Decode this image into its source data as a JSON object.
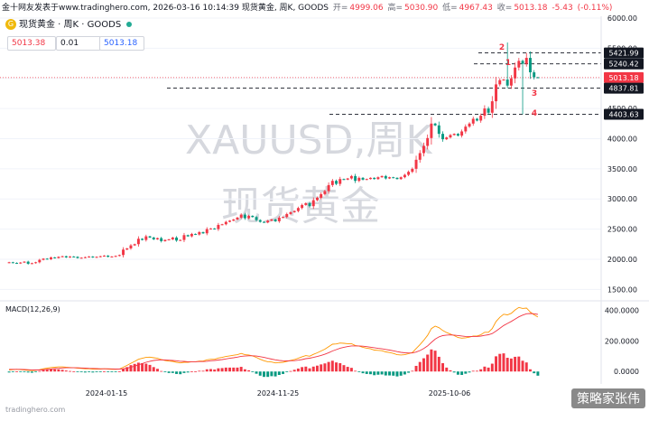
{
  "topbar": {
    "source": "金十网友发表于www.tradinghero.com, 2026-03-16 10:14:39 现货黄金, 周K, GOODS",
    "open_label": "开=",
    "open": "4999.06",
    "high_label": "高=",
    "high": "5030.90",
    "low_label": "低=",
    "low": "4967.43",
    "close_label": "收=",
    "close": "5013.18",
    "change": "-5.43",
    "change_pct": "(-0.11%)"
  },
  "symbol": {
    "icon_text": "G",
    "name": "现货黄金 · 周K · GOODS"
  },
  "boxes": {
    "left": "5013.38",
    "mid": "0.01",
    "right": "5013.18"
  },
  "macd": {
    "label": "MACD(12,26,9)"
  },
  "footer": {
    "logo": "tradinghero.com",
    "brand": "策略家张伟"
  },
  "chart_data": [
    {
      "type": "candlestick",
      "watermark_line1": "XAUUSD,周K",
      "watermark_line2": "现货黄金",
      "y_ticks": [
        1500,
        2000,
        2500,
        3000,
        3500,
        4000,
        4500,
        5000,
        5500,
        6000
      ],
      "ylim": [
        1400,
        6000
      ],
      "x_ticks": [
        "2024-01-15",
        "2024-11-25",
        "2025-10-06"
      ],
      "price_levels": [
        {
          "value": 5421.99,
          "label": "5421.99"
        },
        {
          "value": 5240.42,
          "label": "5240.42"
        },
        {
          "value": 5013.18,
          "label": "5013.18",
          "current": true
        },
        {
          "value": 4837.81,
          "label": "4837.81"
        },
        {
          "value": 4403.63,
          "label": "4403.63"
        }
      ],
      "wave_labels": [
        "1",
        "2",
        "3",
        "4"
      ],
      "series": [
        {
          "name": "close",
          "values": [
            1950,
            1940,
            1930,
            1945,
            1960,
            1925,
            1935,
            1950,
            1990,
            2010,
            2000,
            2030,
            2020,
            2040,
            2050,
            2030,
            2045,
            2040,
            2020,
            2025,
            2035,
            2045,
            2030,
            2040,
            2050,
            2060,
            2040,
            2045,
            2055,
            2070,
            2160,
            2180,
            2230,
            2250,
            2340,
            2320,
            2380,
            2360,
            2330,
            2350,
            2300,
            2320,
            2330,
            2360,
            2310,
            2320,
            2400,
            2380,
            2420,
            2410,
            2450,
            2430,
            2500,
            2510,
            2500,
            2570,
            2580,
            2620,
            2640,
            2660,
            2690,
            2740,
            2680,
            2720,
            2700,
            2650,
            2620,
            2610,
            2640,
            2660,
            2630,
            2690,
            2700,
            2750,
            2780,
            2800,
            2850,
            2900,
            2930,
            2880,
            2980,
            3020,
            3080,
            3130,
            3230,
            3300,
            3250,
            3330,
            3320,
            3340,
            3380,
            3300,
            3350,
            3320,
            3330,
            3350,
            3330,
            3360,
            3380,
            3340,
            3360,
            3350,
            3330,
            3360,
            3400,
            3450,
            3500,
            3650,
            3760,
            3880,
            4010,
            4250,
            4220,
            4080,
            3990,
            4020,
            4060,
            4080,
            4050,
            4120,
            4200,
            4250,
            4330,
            4300,
            4380,
            4500,
            4430,
            4620,
            4900,
            4970,
            4980,
            4880,
            5000,
            5180,
            5290,
            5240,
            5340,
            5100,
            5018,
            5013
          ]
        }
      ],
      "macd_series": [
        {
          "name": "macd",
          "values": [
            10,
            12,
            14,
            12,
            10,
            8,
            6,
            8,
            12,
            18,
            22,
            26,
            28,
            30,
            30,
            28,
            26,
            24,
            22,
            20,
            18,
            18,
            16,
            16,
            16,
            18,
            16,
            14,
            14,
            16,
            28,
            40,
            54,
            66,
            80,
            86,
            92,
            94,
            90,
            86,
            78,
            72,
            68,
            66,
            60,
            56,
            60,
            60,
            64,
            64,
            68,
            68,
            76,
            80,
            80,
            88,
            92,
            98,
            102,
            106,
            110,
            118,
            110,
            108,
            102,
            92,
            80,
            70,
            64,
            62,
            56,
            58,
            60,
            66,
            72,
            78,
            86,
            96,
            104,
            100,
            112,
            122,
            134,
            146,
            162,
            178,
            180,
            186,
            184,
            182,
            182,
            170,
            166,
            158,
            152,
            148,
            140,
            138,
            136,
            128,
            124,
            118,
            110,
            108,
            110,
            116,
            124,
            150,
            176,
            204,
            236,
            280,
            296,
            286,
            268,
            254,
            244,
            234,
            222,
            218,
            220,
            224,
            232,
            232,
            240,
            256,
            256,
            280,
            326,
            354,
            374,
            370,
            380,
            402,
            418,
            412,
            414,
            388,
            370,
            356
          ]
        },
        {
          "name": "signal",
          "values": [
            14,
            14,
            14,
            14,
            13,
            12,
            11,
            10,
            10,
            12,
            14,
            16,
            19,
            21,
            23,
            24,
            24,
            24,
            24,
            23,
            22,
            21,
            20,
            19,
            18,
            18,
            18,
            17,
            16,
            16,
            18,
            22,
            28,
            35,
            44,
            52,
            60,
            67,
            72,
            75,
            76,
            75,
            74,
            72,
            70,
            67,
            66,
            64,
            64,
            64,
            65,
            65,
            67,
            70,
            72,
            75,
            78,
            82,
            86,
            90,
            94,
            99,
            101,
            103,
            103,
            101,
            97,
            92,
            86,
            81,
            76,
            72,
            70,
            69,
            70,
            71,
            74,
            78,
            84,
            87,
            92,
            98,
            105,
            113,
            123,
            134,
            143,
            152,
            158,
            163,
            167,
            167,
            167,
            165,
            162,
            159,
            155,
            151,
            148,
            144,
            140,
            135,
            130,
            125,
            122,
            121,
            121,
            127,
            137,
            150,
            167,
            190,
            211,
            226,
            234,
            238,
            239,
            238,
            235,
            232,
            229,
            228,
            229,
            229,
            231,
            236,
            240,
            248,
            264,
            282,
            300,
            314,
            327,
            342,
            357,
            368,
            377,
            379,
            377,
            373
          ]
        }
      ],
      "macd_y_ticks": [
        "0.0000",
        "200.0000",
        "400.0000"
      ]
    }
  ]
}
